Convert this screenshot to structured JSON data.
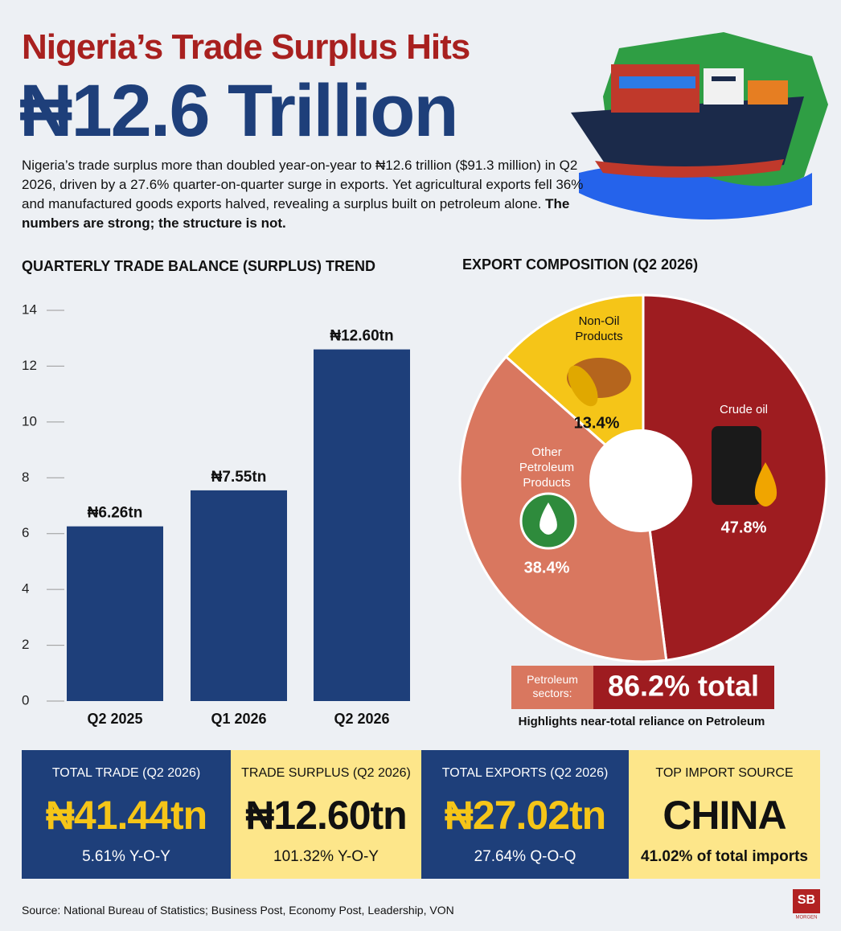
{
  "title": "Nigeria’s Trade Surplus Hits",
  "headline": "₦12.6 Trillion",
  "intro": "Nigeria’s trade surplus more than doubled year-on-year to ₦12.6 trillion ($91.3 million) in Q2 2026, driven by a 27.6% quarter-on-quarter surge in exports. Yet agricultural exports fell 36% and manufactured goods exports halved, revealing a surplus built on petroleum alone.",
  "intro_bold": "The numbers are strong; the structure is not.",
  "chart_data": [
    {
      "type": "bar",
      "title": "QUARTERLY TRADE BALANCE (SURPLUS) TREND",
      "categories": [
        "Q2 2025",
        "Q1 2026",
        "Q2 2026"
      ],
      "values": [
        6.26,
        7.55,
        12.6
      ],
      "value_labels": [
        "₦6.26tn",
        "₦7.55tn",
        "₦12.60tn"
      ],
      "color": "#1e3f7a",
      "ylim": [
        0,
        14
      ],
      "yticks": [
        0,
        2,
        4,
        6,
        8,
        10,
        12,
        14
      ]
    },
    {
      "type": "pie",
      "title": "EXPORT COMPOSITION (Q2 2026)",
      "categories": [
        "Crude oil",
        "Other Petroleum Products",
        "Non-Oil Products"
      ],
      "values": [
        47.8,
        38.4,
        13.4
      ],
      "value_labels": [
        "47.8%",
        "38.4%",
        "13.4%"
      ],
      "colors": [
        "#9e1c20",
        "#d9775f",
        "#f5c518"
      ],
      "donut": true
    }
  ],
  "petroleum": {
    "label": "Petroleum sectors:",
    "value": "86.2% total",
    "note": "Highlights near-total reliance on Petroleum"
  },
  "cards": [
    {
      "label": "TOTAL TRADE (Q2 2026)",
      "value": "₦41.44tn",
      "change": "5.61% Y-O-Y"
    },
    {
      "label": "TRADE SURPLUS (Q2 2026)",
      "value": "₦12.60tn",
      "change": "101.32% Y-O-Y"
    },
    {
      "label": "TOTAL EXPORTS (Q2 2026)",
      "value": "₦27.02tn",
      "change": "27.64% Q-O-Q"
    },
    {
      "label": "TOP IMPORT SOURCE",
      "value": "CHINA",
      "change": "41.02% of total imports"
    }
  ],
  "source": "Source: National Bureau of Statistics; Business Post, Economy Post, Leadership, VON",
  "logo": "SB",
  "logo_sub": "MORGEN"
}
